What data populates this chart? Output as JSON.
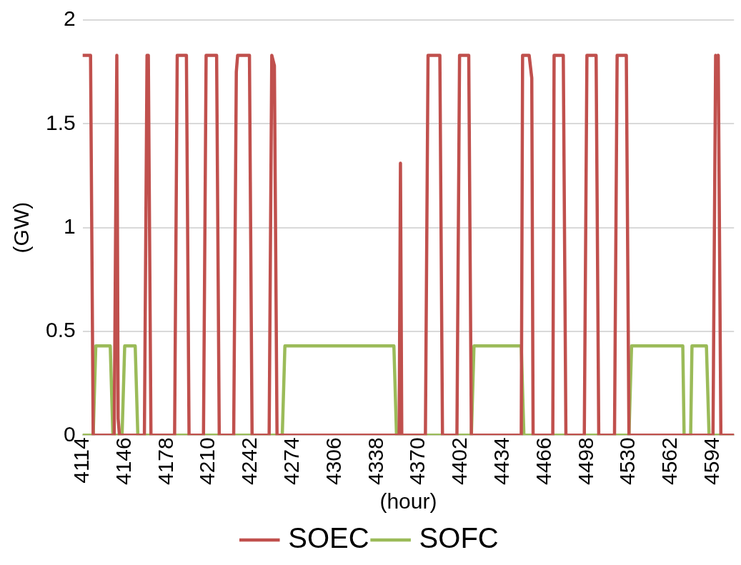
{
  "chart_data": {
    "type": "line",
    "xlabel": "(hour)",
    "ylabel": "(GW)",
    "xlim": [
      4114,
      4610
    ],
    "xticks": [
      4114,
      4146,
      4178,
      4210,
      4242,
      4274,
      4306,
      4338,
      4370,
      4402,
      4434,
      4466,
      4498,
      4530,
      4562,
      4594
    ],
    "ylim": [
      0,
      2
    ],
    "yticks": [
      0,
      0.5,
      1,
      1.5,
      2
    ],
    "grid": "y",
    "legend": "bottom",
    "marker": "none",
    "line_style": "solid",
    "series": [
      {
        "name": "SOEC",
        "color": "#c0504d",
        "x": [
          4114,
          4120,
          4122,
          4138,
          4140,
          4141,
          4142,
          4161,
          4163,
          4164,
          4166,
          4184,
          4186,
          4193,
          4195,
          4206,
          4208,
          4216,
          4218,
          4229,
          4231,
          4232,
          4241,
          4243,
          4256,
          4258,
          4260,
          4262,
          4355,
          4356,
          4357,
          4375,
          4377,
          4386,
          4388,
          4399,
          4401,
          4408,
          4410,
          4448,
          4449,
          4454,
          4456,
          4457,
          4472,
          4473,
          4480,
          4482,
          4496,
          4498,
          4505,
          4507,
          4519,
          4521,
          4528,
          4530,
          4594,
          4596,
          4597,
          4598,
          4600,
          4610
        ],
        "values": [
          1.83,
          1.83,
          0,
          0,
          1.83,
          0.08,
          0,
          0,
          1.83,
          1.83,
          0,
          0,
          1.83,
          1.83,
          0,
          0,
          1.83,
          1.83,
          0,
          0,
          1.75,
          1.83,
          1.83,
          0,
          0,
          1.83,
          1.78,
          0,
          0,
          1.31,
          0,
          0,
          1.83,
          1.83,
          0,
          0,
          1.83,
          1.83,
          0,
          0,
          1.83,
          1.83,
          1.72,
          0,
          0,
          1.83,
          1.83,
          0,
          0,
          1.83,
          1.83,
          0,
          0,
          1.83,
          1.83,
          0,
          0,
          1.83,
          1.8,
          1.83,
          0,
          0
        ]
      },
      {
        "name": "SOFC",
        "color": "#9bbb59",
        "x": [
          4114,
          4122,
          4124,
          4135,
          4137,
          4144,
          4146,
          4154,
          4156,
          4266,
          4268,
          4351,
          4353,
          4410,
          4412,
          4448,
          4450,
          4530,
          4532,
          4571,
          4572,
          4577,
          4578,
          4589,
          4591,
          4610
        ],
        "values": [
          0,
          0,
          0.43,
          0.43,
          0,
          0,
          0.43,
          0.43,
          0,
          0,
          0.43,
          0.43,
          0,
          0,
          0.43,
          0.43,
          0,
          0,
          0.43,
          0.43,
          0,
          0,
          0.43,
          0.43,
          0,
          0
        ]
      }
    ]
  }
}
